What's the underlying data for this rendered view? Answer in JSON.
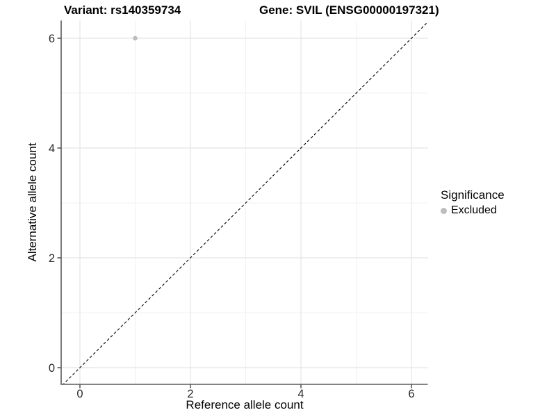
{
  "chart_data": {
    "type": "scatter",
    "title_left": "Variant: rs140359734",
    "title_right": "Gene: SVIL (ENSG00000197321)",
    "xlabel": "Reference allele count",
    "ylabel": "Alternative allele count",
    "xlim": [
      -0.32,
      6.32
    ],
    "ylim": [
      -0.32,
      6.32
    ],
    "x_ticks": [
      0,
      2,
      4,
      6
    ],
    "y_ticks": [
      0,
      2,
      4,
      6
    ],
    "x_minor_ticks": [
      1,
      3,
      5
    ],
    "y_minor_ticks": [
      1,
      3,
      5
    ],
    "grid": true,
    "points": [
      {
        "x": 1,
        "y": 6,
        "series": "Excluded"
      }
    ],
    "reference_line": {
      "kind": "identity y=x",
      "style": "dashed",
      "color": "#000000"
    },
    "legend": {
      "title": "Significance",
      "position": "right",
      "items": [
        {
          "label": "Excluded",
          "marker": "circle",
          "color": "#bdbdbd"
        }
      ]
    },
    "colors": {
      "point": "#bdbdbd",
      "axis_line": "#5a5a5a",
      "grid_major": "#e4e4e4",
      "grid_minor": "#f1f1f1",
      "tick_text": "#2b2b2b",
      "title_text": "#000000"
    }
  }
}
